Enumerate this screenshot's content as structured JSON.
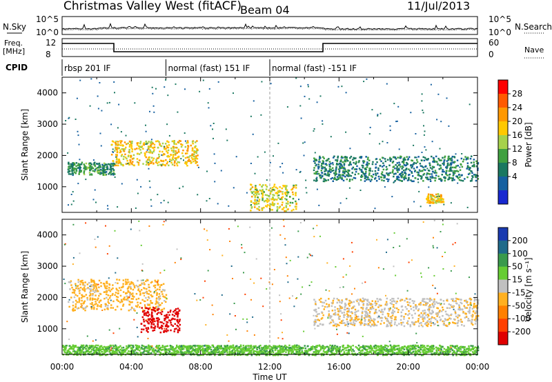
{
  "header": {
    "station": "Christmas Valley West (fitACF)",
    "beam": "Beam 04",
    "date": "11/Jul/2013"
  },
  "panels": {
    "nsky_label": "N.Sky",
    "nsearch_label": "N.Search",
    "freq_label_1": "Freq.",
    "freq_label_2": "[MHz]",
    "nave_label": "Nave",
    "cpid_label": "CPID",
    "nsky_ticks": [
      "10^5",
      "10^0"
    ],
    "nsearch_ticks": [
      "10^5",
      "10^0"
    ],
    "freq_ticks": [
      "12",
      "8"
    ],
    "nave_ticks": [
      "60",
      "0"
    ]
  },
  "cpid_segments": [
    {
      "label": "rbsp 201 IF",
      "start_hour": 0
    },
    {
      "label": "normal (fast) 151 IF",
      "start_hour": 6
    },
    {
      "label": "normal (fast) -151 IF",
      "start_hour": 12
    }
  ],
  "power_colorbar": {
    "label": "Power [dB]",
    "ticks": [
      "28",
      "24",
      "20",
      "16",
      "12",
      "8",
      "4"
    ],
    "colors": [
      "#ff0000",
      "#ff5a00",
      "#ff9800",
      "#ffc800",
      "#a6d14b",
      "#40a040",
      "#1a7860",
      "#1660a0",
      "#1828d0"
    ]
  },
  "velocity_colorbar": {
    "label": "Velocity [m s⁻¹]",
    "ticks": [
      "200",
      "100",
      "50",
      "15",
      "-15",
      "-50",
      "-100",
      "-200"
    ],
    "colors": [
      "#1a3ab0",
      "#1f6a8a",
      "#3a9a4c",
      "#66cc33",
      "#c0c0c0",
      "#ffb020",
      "#ff8000",
      "#ff4000",
      "#e00000"
    ]
  },
  "chart_data": [
    {
      "type": "heatmap",
      "title": "",
      "xlabel": "Time UT",
      "ylabel": "Slant Range [km]",
      "x_ticks": [
        "00:00",
        "04:00",
        "08:00",
        "12:00",
        "16:00",
        "20:00",
        "00:00"
      ],
      "y_ticks": [
        "1000",
        "2000",
        "3000",
        "4000"
      ],
      "xlim_hours": [
        0,
        24
      ],
      "ylim_km": [
        180,
        4500
      ],
      "colorbar": "Power [dB]",
      "approx_features": [
        {
          "hour_start": 2.8,
          "hour_end": 7.8,
          "range_km": [
            1700,
            2500
          ],
          "power_db": 20
        },
        {
          "hour_start": 0.3,
          "hour_end": 3.0,
          "range_km": [
            1400,
            1800
          ],
          "power_db": 10
        },
        {
          "hour_start": 10.8,
          "hour_end": 13.5,
          "range_km": [
            250,
            1100
          ],
          "power_db": 18
        },
        {
          "hour_start": 14.5,
          "hour_end": 24,
          "range_km": [
            1200,
            2000
          ],
          "power_db": 8
        },
        {
          "hour_start": 21,
          "hour_end": 22,
          "range_km": [
            500,
            800
          ],
          "power_db": 20
        }
      ]
    },
    {
      "type": "heatmap",
      "title": "",
      "xlabel": "Time UT",
      "ylabel": "Slant Range [km]",
      "x_ticks": [
        "00:00",
        "04:00",
        "08:00",
        "12:00",
        "16:00",
        "20:00",
        "00:00"
      ],
      "y_ticks": [
        "1000",
        "2000",
        "3000",
        "4000"
      ],
      "xlim_hours": [
        0,
        24
      ],
      "ylim_km": [
        180,
        4500
      ],
      "colorbar": "Velocity [m s⁻¹]",
      "approx_features": [
        {
          "hour_start": 0.3,
          "hour_end": 6,
          "range_km": [
            1600,
            2600
          ],
          "velocity_ms": -30
        },
        {
          "hour_start": 4.5,
          "hour_end": 6.8,
          "range_km": [
            900,
            1700
          ],
          "velocity_ms": -250
        },
        {
          "hour_start": 14.5,
          "hour_end": 24,
          "range_km": [
            1100,
            2000
          ],
          "velocity_ms": -10
        },
        {
          "hour_start": 0,
          "hour_end": 24,
          "range_km": [
            180,
            500
          ],
          "velocity_ms": 40
        }
      ]
    }
  ]
}
